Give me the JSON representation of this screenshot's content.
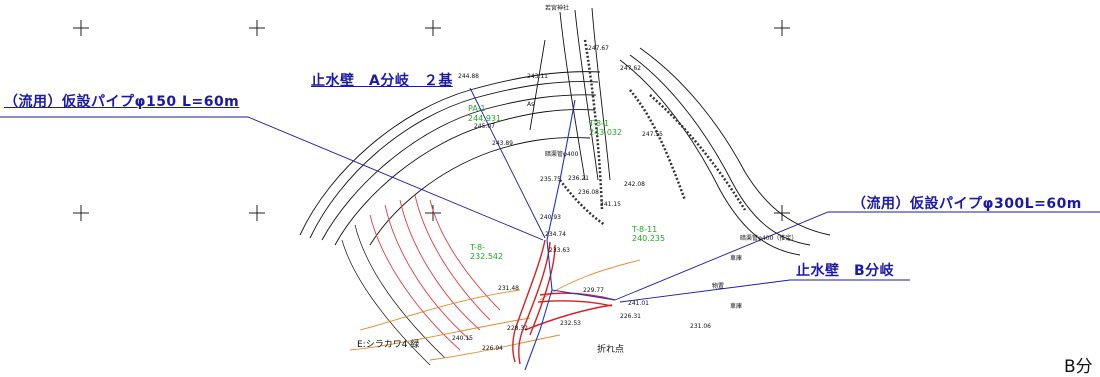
{
  "callouts": {
    "temp_pipe_150": "（流用）仮設パイプφ150 L=60m",
    "stop_wall_a": "止水壁　A分岐　２基",
    "temp_pipe_300": "（流用）仮設パイプφ300L=60m",
    "stop_wall_b": "止水壁　B分岐"
  },
  "edge_text": "B分",
  "map_labels": {
    "shrine": "若宮神社",
    "pa1_id": "PA-1",
    "pa1_val": "244.931",
    "t81_id": "T-8-1",
    "t81_val": "243.032",
    "t8x_id": "T-8-",
    "t8x_val": "232.542",
    "t811_id": "T-8-11",
    "t811_val": "240.235",
    "storm_pipe_1": "暗渠管φ400",
    "storm_pipe_2": "暗渠管φ400（推定）",
    "garage_1": "車庫",
    "garage_2": "車庫",
    "storage": "物置",
    "river": "E:シラカワ4 緑",
    "fold_point": "折れ点",
    "as": "As",
    "elev": [
      "247.67",
      "247.62",
      "244.88",
      "245.07",
      "243.11",
      "243.89",
      "247.55",
      "242.08",
      "236.08",
      "235.75",
      "236.21",
      "241.15",
      "240.93",
      "234.74",
      "233.63",
      "231.48",
      "229.77",
      "231.06",
      "241.01",
      "240.15",
      "228.32",
      "226.94",
      "226.31",
      "232.53",
      "231.95"
    ]
  },
  "colors": {
    "callout_blue": "#1a1aa6",
    "label_green": "#22aa22",
    "contour_red": "#e04040",
    "contour_orange": "#e08a2a",
    "line_black": "#111111"
  }
}
